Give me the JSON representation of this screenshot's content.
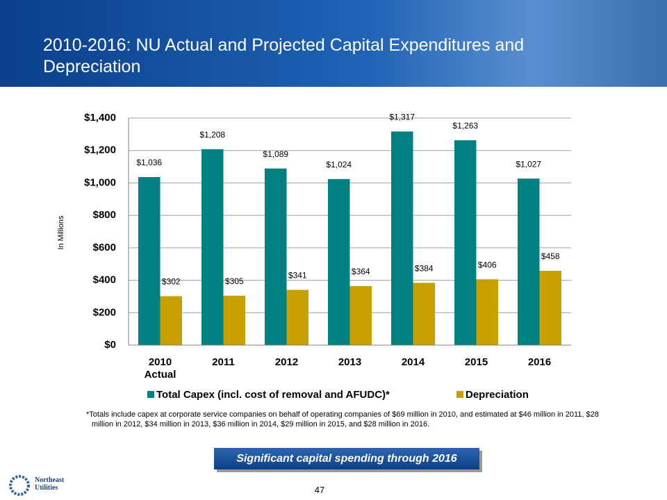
{
  "title": "2010-2016:  NU Actual and Projected Capital Expenditures and Depreciation",
  "chart_data": {
    "type": "bar",
    "categories": [
      "2010 Actual",
      "2011",
      "2012",
      "2013",
      "2014",
      "2015",
      "2016"
    ],
    "series": [
      {
        "name": "Total Capex (incl. cost of removal and AFUDC)*",
        "color": "#008080",
        "values": [
          1036,
          1208,
          1089,
          1024,
          1317,
          1263,
          1027
        ],
        "value_labels": [
          "$1,036",
          "$1,208",
          "$1,089",
          "$1,024",
          "$1,317",
          "$1,263",
          "$1,027"
        ]
      },
      {
        "name": "Depreciation",
        "color": "#c8a000",
        "values": [
          302,
          305,
          341,
          364,
          384,
          406,
          458
        ],
        "value_labels": [
          "$302",
          "$305",
          "$341",
          "$364",
          "$384",
          "$406",
          "$458"
        ]
      }
    ],
    "y_label": "In Millions",
    "ylim": [
      0,
      1400
    ],
    "yticks": [
      {
        "value": 0,
        "label": "$0"
      },
      {
        "value": 200,
        "label": "$200"
      },
      {
        "value": 400,
        "label": "$400"
      },
      {
        "value": 600,
        "label": "$600"
      },
      {
        "value": 800,
        "label": "$800"
      },
      {
        "value": 1000,
        "label": "$1,000"
      },
      {
        "value": 1200,
        "label": "$1,200"
      },
      {
        "value": 1400,
        "label": "$1,400"
      }
    ],
    "grid": true,
    "legend": "bottom"
  },
  "footnote": "*Totals include capex at corporate service companies on behalf of operating companies of $69 million in 2010, and estimated at $46 million in 2011, $28 million in 2012, $34 million in 2013, $36 million in 2014, $29 million in 2015, and $28 million in 2016.",
  "callout": "Significant capital spending through 2016",
  "page_number": "47",
  "logo": "Northeast Utilities"
}
